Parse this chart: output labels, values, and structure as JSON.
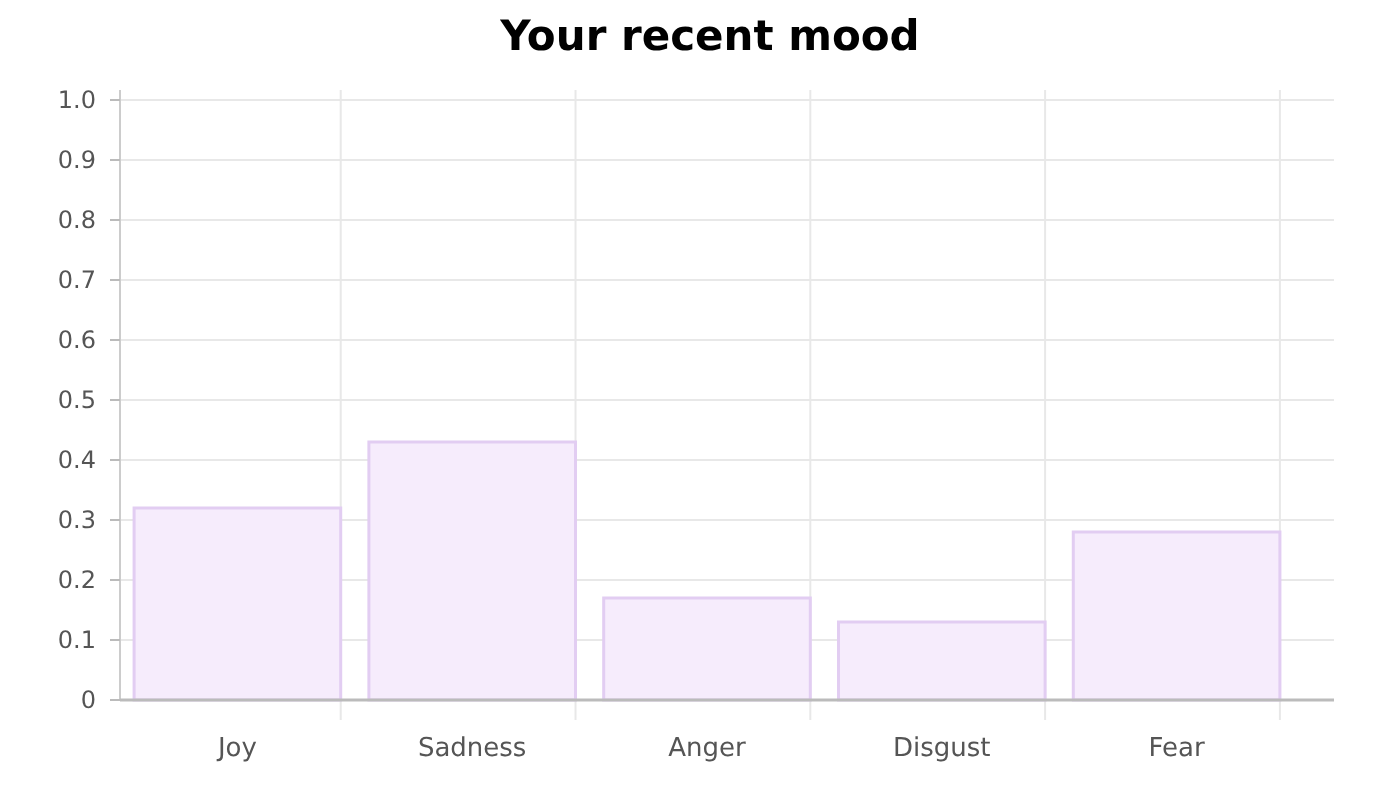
{
  "chart_data": {
    "type": "bar",
    "title": "Your recent mood",
    "categories": [
      "Joy",
      "Sadness",
      "Anger",
      "Disgust",
      "Fear"
    ],
    "values": [
      0.32,
      0.43,
      0.17,
      0.13,
      0.28
    ],
    "color": "#f6ecfc",
    "ylim": [
      0,
      1
    ],
    "yticks": [
      {
        "value": 0,
        "label": "0"
      },
      0.1,
      0.2,
      0.3,
      0.4,
      0.5,
      0.6,
      0.7,
      0.8,
      0.9,
      {
        "value": 1,
        "label": "1.0"
      }
    ],
    "grid": true
  }
}
